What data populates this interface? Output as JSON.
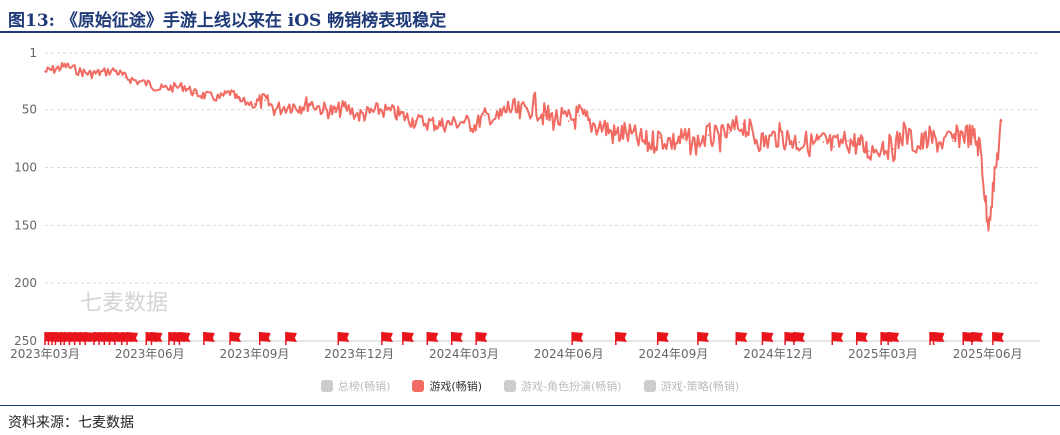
{
  "figure": {
    "title": "图13:  《原始征途》手游上线以来在 iOS 畅销榜表现稳定",
    "source": "资料来源：七麦数据"
  },
  "watermark": "七麦数据",
  "legend": [
    {
      "label": "总榜(畅销)",
      "active": false
    },
    {
      "label": "游戏(畅销)",
      "active": true
    },
    {
      "label": "游戏-角色扮演(畅销)",
      "active": false
    },
    {
      "label": "游戏-策略(畅销)",
      "active": false
    }
  ],
  "colors": {
    "series": "#f26b63",
    "flag": "#e8141c",
    "grid": "#d9d9d9",
    "title": "#1f3a78"
  },
  "chart_data": {
    "type": "line",
    "title": "",
    "xlabel": "",
    "ylabel": "",
    "y_inverted": true,
    "ylim": [
      1,
      250
    ],
    "yticks": [
      "1",
      "50",
      "100",
      "150",
      "200",
      "250"
    ],
    "ytick_values": [
      1,
      50,
      100,
      150,
      200,
      250
    ],
    "xticks": [
      "2023年03月",
      "2023年06月",
      "2023年09月",
      "2023年12月",
      "2024年03月",
      "2024年06月",
      "2024年09月",
      "2024年12月",
      "2025年03月",
      "2025年06月"
    ],
    "xtick_months": [
      0,
      3,
      6,
      9,
      12,
      15,
      18,
      21,
      24,
      27
    ],
    "grid": true,
    "series": [
      {
        "name": "游戏(畅销)",
        "x_month": [
          0.0,
          0.3,
          0.6,
          1.0,
          1.3,
          1.6,
          2.0,
          2.3,
          2.6,
          3.0,
          3.3,
          3.6,
          4.0,
          4.3,
          4.6,
          5.0,
          5.3,
          5.6,
          6.0,
          6.3,
          6.6,
          7.0,
          7.3,
          7.6,
          8.0,
          8.3,
          8.6,
          9.0,
          9.3,
          9.6,
          10.0,
          10.3,
          10.6,
          11.0,
          11.3,
          11.6,
          12.0,
          12.3,
          12.6,
          13.0,
          13.3,
          13.6,
          14.0,
          14.3,
          14.6,
          15.0,
          15.3,
          15.6,
          16.0,
          16.3,
          16.6,
          17.0,
          17.3,
          17.6,
          18.0,
          18.3,
          18.6,
          19.0,
          19.3,
          19.6,
          20.0,
          20.3,
          20.6,
          21.0,
          21.3,
          21.6,
          22.0,
          22.3,
          22.6,
          23.0,
          23.3,
          23.6,
          24.0,
          24.3,
          24.6,
          25.0,
          25.3,
          25.6,
          26.0,
          26.3,
          26.6,
          26.8,
          27.0,
          27.2,
          27.4
        ],
        "rank": [
          17,
          15,
          12,
          17,
          19,
          18,
          16,
          22,
          25,
          28,
          32,
          31,
          30,
          36,
          38,
          40,
          35,
          43,
          45,
          42,
          50,
          46,
          47,
          44,
          50,
          52,
          48,
          55,
          53,
          50,
          53,
          56,
          60,
          61,
          63,
          62,
          60,
          64,
          55,
          58,
          48,
          55,
          45,
          55,
          58,
          60,
          55,
          62,
          64,
          72,
          70,
          76,
          80,
          74,
          78,
          75,
          80,
          72,
          76,
          70,
          62,
          73,
          78,
          72,
          75,
          78,
          80,
          78,
          82,
          77,
          80,
          86,
          80,
          84,
          70,
          82,
          75,
          78,
          77,
          70,
          74,
          84,
          150,
          110,
          60
        ]
      }
    ],
    "flag_months": [
      0.0,
      0.1,
      0.2,
      0.3,
      0.45,
      0.55,
      0.7,
      0.85,
      1.0,
      1.15,
      1.4,
      1.55,
      1.7,
      1.85,
      2.0,
      2.2,
      2.35,
      2.9,
      3.05,
      3.55,
      3.7,
      3.85,
      4.55,
      5.3,
      6.15,
      6.9,
      8.4,
      9.65,
      10.25,
      10.95,
      11.65,
      12.35,
      15.1,
      16.35,
      17.55,
      18.7,
      19.8,
      20.55,
      21.2,
      21.45,
      22.55,
      23.25,
      23.95,
      24.15,
      25.35,
      25.45,
      26.3,
      26.55,
      27.15
    ]
  }
}
